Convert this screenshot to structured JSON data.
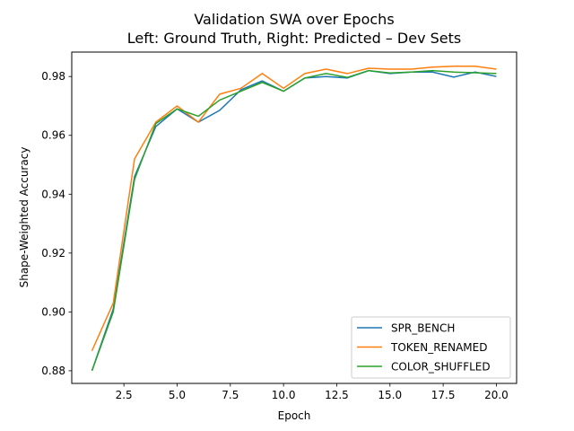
{
  "chart_data": {
    "type": "line",
    "title_line1": "Validation SWA over Epochs",
    "title_line2": "Left: Ground Truth, Right: Predicted – Dev Sets",
    "xlabel": "Epoch",
    "ylabel": "Shape-Weighted Accuracy",
    "xlim": [
      0.05,
      20.95
    ],
    "ylim": [
      0.8757,
      0.9883
    ],
    "x_ticks": [
      2.5,
      5.0,
      7.5,
      10.0,
      12.5,
      15.0,
      17.5,
      20.0
    ],
    "x_tick_labels": [
      "2.5",
      "5.0",
      "7.5",
      "10.0",
      "12.5",
      "15.0",
      "17.5",
      "20.0"
    ],
    "y_ticks": [
      0.88,
      0.9,
      0.92,
      0.94,
      0.96,
      0.98
    ],
    "y_tick_labels": [
      "0.88",
      "0.90",
      "0.92",
      "0.94",
      "0.96",
      "0.98"
    ],
    "grid": false,
    "legend_position": "lower-right",
    "x": [
      1,
      2,
      3,
      4,
      5,
      6,
      7,
      8,
      9,
      10,
      11,
      12,
      13,
      14,
      15,
      16,
      17,
      18,
      19,
      20
    ],
    "series": [
      {
        "name": "SPR_BENCH",
        "color": "#1f77b4",
        "values": [
          0.88,
          0.901,
          0.946,
          0.963,
          0.969,
          0.9645,
          0.9685,
          0.9755,
          0.9785,
          0.975,
          0.9795,
          0.98,
          0.9795,
          0.982,
          0.981,
          0.9815,
          0.9815,
          0.9798,
          0.9815,
          0.98
        ]
      },
      {
        "name": "TOKEN_RENAMED",
        "color": "#ff7f0e",
        "values": [
          0.8868,
          0.903,
          0.952,
          0.9645,
          0.97,
          0.9645,
          0.974,
          0.976,
          0.981,
          0.976,
          0.981,
          0.9825,
          0.981,
          0.9828,
          0.9825,
          0.9825,
          0.9832,
          0.9835,
          0.9835,
          0.9825
        ]
      },
      {
        "name": "COLOR_SHUFFLED",
        "color": "#2ca02c",
        "values": [
          0.88,
          0.9,
          0.945,
          0.964,
          0.969,
          0.9665,
          0.972,
          0.975,
          0.978,
          0.975,
          0.9795,
          0.981,
          0.9797,
          0.982,
          0.9812,
          0.9815,
          0.982,
          0.9815,
          0.9813,
          0.981
        ]
      }
    ]
  }
}
